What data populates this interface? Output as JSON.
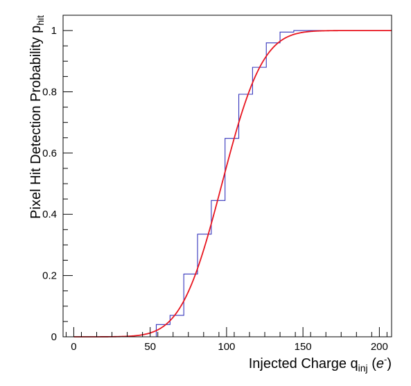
{
  "chart_data": {
    "type": "line",
    "xlabel": {
      "main": "Injected Charge q",
      "sub": "inj",
      "tail": " (",
      "italic": "e",
      "sup": "-",
      "close": ")"
    },
    "ylabel": {
      "main": "Pixel Hit Detection Probability p",
      "sub": "hit"
    },
    "xlim": [
      -7,
      208
    ],
    "ylim": [
      0,
      1.05
    ],
    "x_ticks": [
      0,
      50,
      100,
      150,
      200
    ],
    "x_tick_labels": [
      "0",
      "50",
      "100",
      "150",
      "200"
    ],
    "y_ticks": [
      0,
      0.2,
      0.4,
      0.6,
      0.8,
      1
    ],
    "y_tick_labels": [
      "0",
      "0.2",
      "0.4",
      "0.6",
      "0.8",
      "1"
    ],
    "grid": false,
    "series": [
      {
        "kind": "step-histogram",
        "color": "#3333bb",
        "bin_edges": [
          0,
          9,
          18,
          27,
          36,
          45,
          54,
          63,
          72,
          81,
          90,
          99,
          108,
          117,
          126,
          135,
          144,
          153,
          162,
          171,
          180,
          189,
          198,
          208
        ],
        "values": [
          0,
          0,
          0,
          0,
          0,
          0,
          0.04,
          0.07,
          0.205,
          0.335,
          0.445,
          0.648,
          0.792,
          0.88,
          0.96,
          0.995,
          1,
          1,
          1,
          1,
          1,
          1,
          1
        ]
      },
      {
        "kind": "fit-curve",
        "color": "#e8141e",
        "model": "erf",
        "mean": 97,
        "sigma": 21,
        "x_range": [
          0,
          208
        ]
      }
    ]
  }
}
